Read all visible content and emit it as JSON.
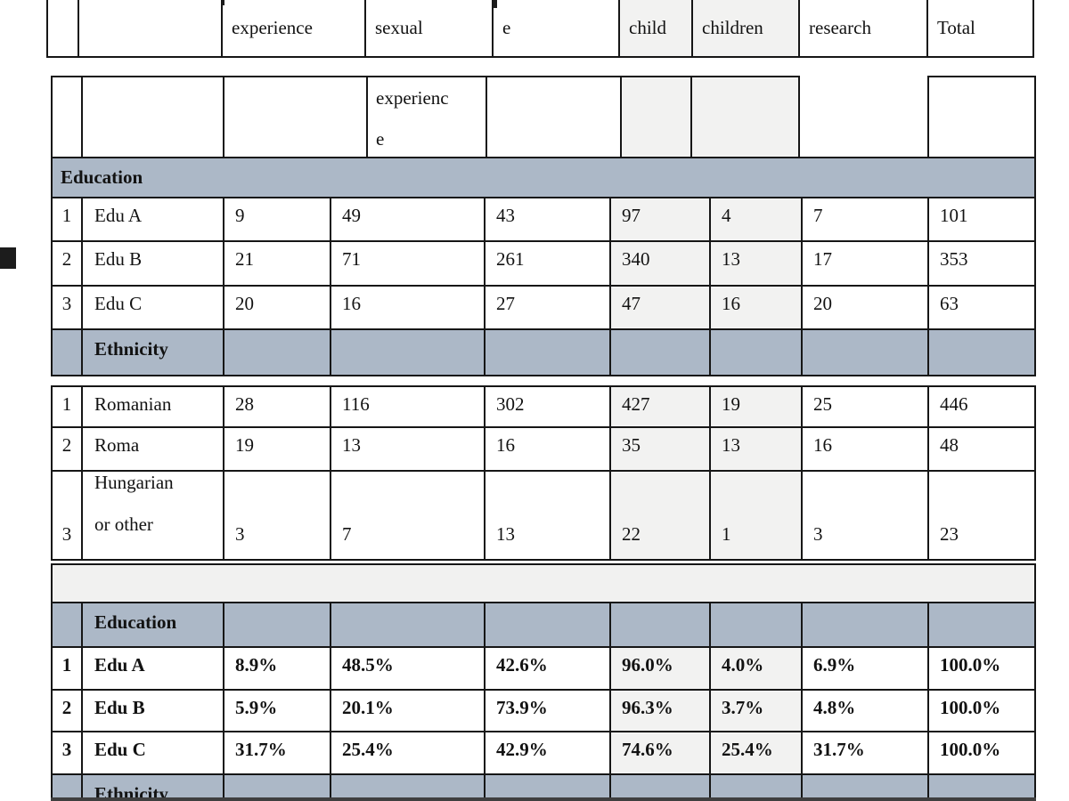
{
  "colors": {
    "band_blue": "#acb8c7",
    "shaded_cell_gray": "#f2f2f1",
    "border_black": "#161616",
    "margin_marker": "#232323"
  },
  "strip": {
    "cells": [
      "",
      "",
      "experience",
      "sexual",
      "e",
      "child",
      "children",
      "research",
      "Total"
    ]
  },
  "main_table": {
    "header_cells": [
      "",
      "",
      "",
      "experienc\ne",
      "",
      "",
      "",
      "",
      ""
    ],
    "education_band": "Education",
    "education_rows": [
      {
        "num": "1",
        "label": "Edu A",
        "values": [
          "9",
          "49",
          "43",
          "97",
          "4",
          "7",
          "101"
        ]
      },
      {
        "num": "2",
        "label": "Edu B",
        "values": [
          "21",
          "71",
          "261",
          "340",
          "13",
          "17",
          "353"
        ]
      },
      {
        "num": "3",
        "label": "Edu C",
        "values": [
          "20",
          "16",
          "27",
          "47",
          "16",
          "20",
          "63"
        ]
      }
    ],
    "ethnicity_band": "Ethnicity"
  },
  "ethnicity_table": {
    "rows": [
      {
        "num": "1",
        "label": "Romanian",
        "values": [
          "28",
          "116",
          "302",
          "427",
          "19",
          "25",
          "446"
        ]
      },
      {
        "num": "2",
        "label": "Roma",
        "values": [
          "19",
          "13",
          "16",
          "35",
          "13",
          "16",
          "48"
        ]
      },
      {
        "num": "3",
        "label": "Hungarian\nor other",
        "values": [
          "3",
          "7",
          "13",
          "22",
          "1",
          "3",
          "23"
        ]
      }
    ]
  },
  "percent_table": {
    "education_band": "Education",
    "education_rows": [
      {
        "num": "1",
        "label": "Edu A",
        "values": [
          "8.9%",
          "48.5%",
          "42.6%",
          "96.0%",
          "4.0%",
          "6.9%",
          "100.0%"
        ]
      },
      {
        "num": "2",
        "label": "Edu B",
        "values": [
          "5.9%",
          "20.1%",
          "73.9%",
          "96.3%",
          "3.7%",
          "4.8%",
          "100.0%"
        ]
      },
      {
        "num": "3",
        "label": "Edu C",
        "values": [
          "31.7%",
          "25.4%",
          "42.9%",
          "74.6%",
          "25.4%",
          "31.7%",
          "100.0%"
        ]
      }
    ],
    "ethnicity_band": "Ethnicity"
  }
}
